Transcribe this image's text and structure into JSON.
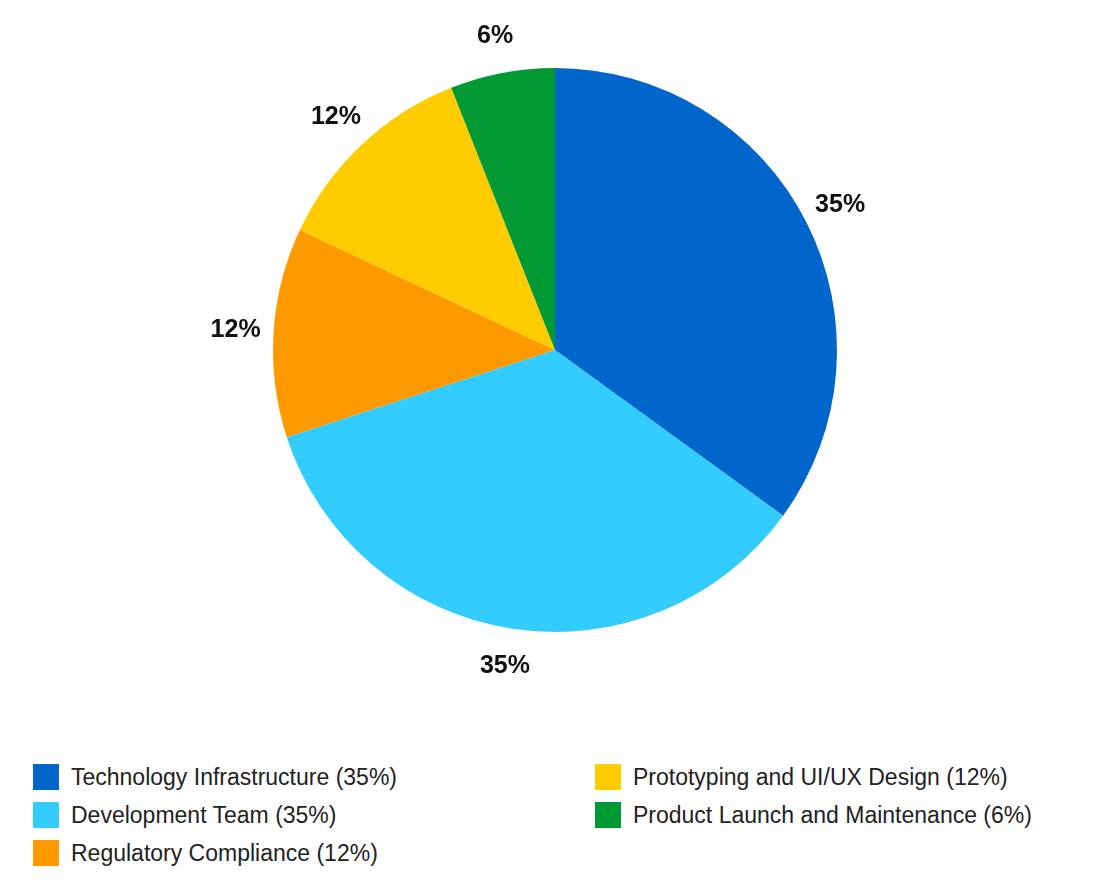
{
  "chart_data": {
    "type": "pie",
    "categories": [
      "Technology Infrastructure (35%)",
      "Development Team (35%)",
      "Regulatory Compliance (12%)",
      "Prototyping and UI/UX Design (12%)",
      "Product Launch and Maintenance (6%)"
    ],
    "values": [
      35,
      35,
      12,
      12,
      6
    ],
    "value_labels": [
      "35%",
      "35%",
      "12%",
      "12%",
      "6%"
    ],
    "colors": [
      "#0066cc",
      "#33ccff",
      "#ff9900",
      "#ffcc00",
      "#009933"
    ],
    "data_labels": true,
    "legend": "bottom"
  }
}
